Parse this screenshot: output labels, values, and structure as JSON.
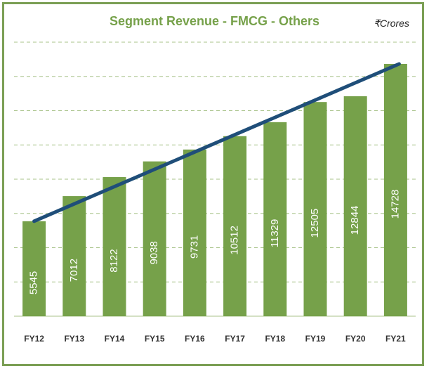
{
  "chart_data": {
    "type": "bar",
    "title": "Segment Revenue - FMCG - Others",
    "unit_label": "₹Crores",
    "categories": [
      "FY12",
      "FY13",
      "FY14",
      "FY15",
      "FY16",
      "FY17",
      "FY18",
      "FY19",
      "FY20",
      "FY21"
    ],
    "values": [
      5545,
      7012,
      8122,
      9038,
      9731,
      10512,
      11329,
      12505,
      12844,
      14728
    ],
    "data_labels_rotated": true,
    "trend_line": {
      "type": "linear",
      "from_category": "FY12",
      "to_category": "FY21",
      "color": "#1f4e79"
    },
    "grid": true,
    "grid_style": "dashed",
    "ylim": [
      0,
      16000
    ],
    "y_axis_labels_shown": false,
    "legend": "none",
    "colors": {
      "bar": "#76a14a",
      "title": "#76a14a",
      "grid": "#a8c38a",
      "trend": "#1f4e79",
      "frame": "#7b9f55"
    }
  }
}
